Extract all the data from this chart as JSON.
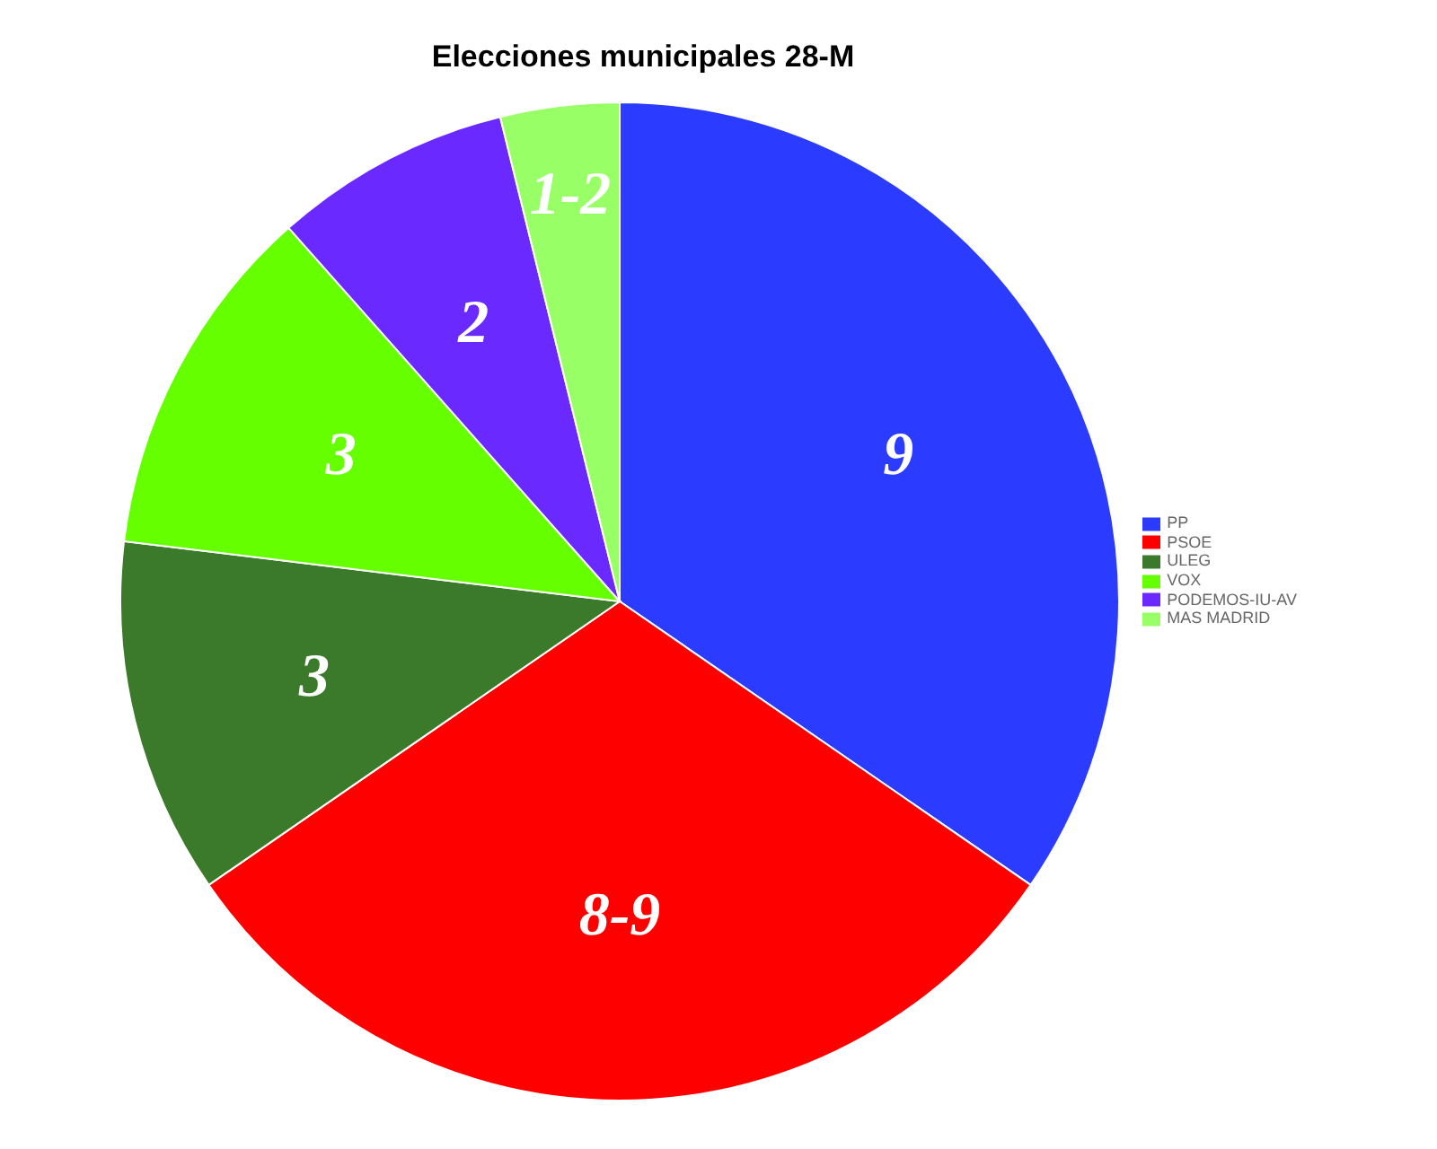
{
  "chart_data": {
    "type": "pie",
    "title": "Elecciones municipales 28-M",
    "categories": [
      "PP",
      "PSOE",
      "ULEG",
      "VOX",
      "PODEMOS-IU-AV",
      "MAS MADRID"
    ],
    "values": [
      9,
      8,
      3,
      3,
      2,
      1
    ],
    "value_labels": [
      "9",
      "8-9",
      "3",
      "3",
      "2",
      "1-2"
    ],
    "colors": [
      "#2b3bff",
      "#ff0000",
      "#3b7a2a",
      "#66ff00",
      "#6a2aff",
      "#99ff66"
    ],
    "legend": "right"
  }
}
